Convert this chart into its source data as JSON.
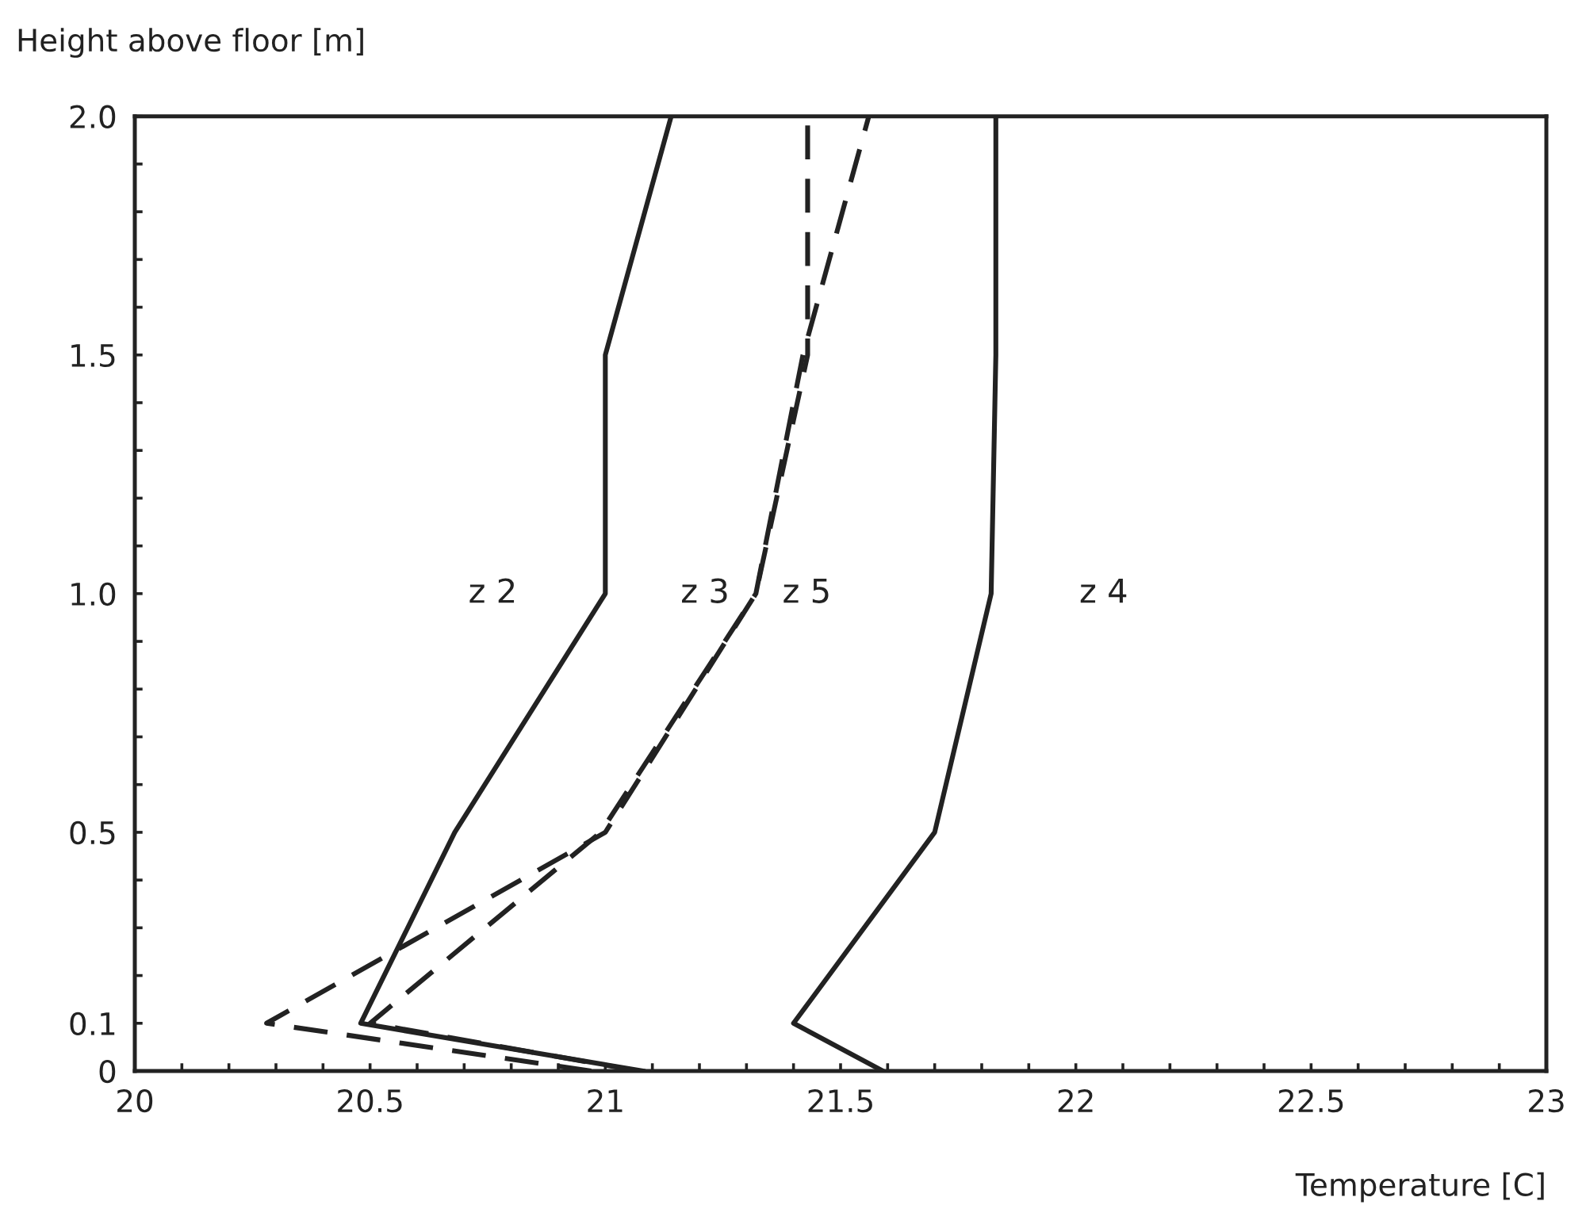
{
  "chart_data": {
    "type": "line",
    "xlabel": "Temperature [C]",
    "ylabel": "Height above floor [m]",
    "xlim": [
      20,
      23
    ],
    "ylim": [
      0,
      2.0
    ],
    "xticks": [
      {
        "value": 20,
        "label": "20"
      },
      {
        "value": 20.1,
        "label": null
      },
      {
        "value": 20.2,
        "label": null
      },
      {
        "value": 20.3,
        "label": null
      },
      {
        "value": 20.4,
        "label": null
      },
      {
        "value": 20.5,
        "label": "20.5"
      },
      {
        "value": 20.6,
        "label": null
      },
      {
        "value": 20.7,
        "label": null
      },
      {
        "value": 20.8,
        "label": null
      },
      {
        "value": 20.9,
        "label": null
      },
      {
        "value": 21,
        "label": "21"
      },
      {
        "value": 21.1,
        "label": null
      },
      {
        "value": 21.2,
        "label": null
      },
      {
        "value": 21.3,
        "label": null
      },
      {
        "value": 21.4,
        "label": null
      },
      {
        "value": 21.5,
        "label": "21.5"
      },
      {
        "value": 21.6,
        "label": null
      },
      {
        "value": 21.7,
        "label": null
      },
      {
        "value": 21.8,
        "label": null
      },
      {
        "value": 21.9,
        "label": null
      },
      {
        "value": 22,
        "label": "22"
      },
      {
        "value": 22.1,
        "label": null
      },
      {
        "value": 22.2,
        "label": null
      },
      {
        "value": 22.3,
        "label": null
      },
      {
        "value": 22.4,
        "label": null
      },
      {
        "value": 22.5,
        "label": "22.5"
      },
      {
        "value": 22.6,
        "label": null
      },
      {
        "value": 22.7,
        "label": null
      },
      {
        "value": 22.8,
        "label": null
      },
      {
        "value": 22.9,
        "label": null
      },
      {
        "value": 23,
        "label": "23"
      }
    ],
    "yticks": [
      {
        "value": 0,
        "label": "0"
      },
      {
        "value": 0.1,
        "label": "0.1"
      },
      {
        "value": 0.2,
        "label": null
      },
      {
        "value": 0.3,
        "label": null
      },
      {
        "value": 0.4,
        "label": null
      },
      {
        "value": 0.5,
        "label": "0.5"
      },
      {
        "value": 0.6,
        "label": null
      },
      {
        "value": 0.7,
        "label": null
      },
      {
        "value": 0.8,
        "label": null
      },
      {
        "value": 0.9,
        "label": null
      },
      {
        "value": 1.0,
        "label": "1.0"
      },
      {
        "value": 1.1,
        "label": null
      },
      {
        "value": 1.2,
        "label": null
      },
      {
        "value": 1.3,
        "label": null
      },
      {
        "value": 1.4,
        "label": null
      },
      {
        "value": 1.5,
        "label": "1.5"
      },
      {
        "value": 1.6,
        "label": null
      },
      {
        "value": 1.7,
        "label": null
      },
      {
        "value": 1.8,
        "label": null
      },
      {
        "value": 1.9,
        "label": null
      },
      {
        "value": 2.0,
        "label": "2.0"
      }
    ],
    "grid": false,
    "legend": false,
    "series": [
      {
        "name": "z 2",
        "color": "#222222",
        "line_style": "solid",
        "x": [
          21.08,
          20.48,
          20.68,
          21.0,
          21.0,
          21.14
        ],
        "values": [
          0,
          0.1,
          0.5,
          1.0,
          1.5,
          2.0
        ]
      },
      {
        "name": "z 3",
        "color": "#222222",
        "line_style": "dashed",
        "x": [
          21.07,
          20.5,
          20.99,
          21.32,
          21.42,
          21.56
        ],
        "values": [
          0,
          0.1,
          0.5,
          1.0,
          1.5,
          2.0
        ]
      },
      {
        "name": "z 5",
        "color": "#222222",
        "line_style": "dashed",
        "x": [
          20.97,
          20.28,
          21.0,
          21.32,
          21.43,
          21.43
        ],
        "values": [
          0,
          0.1,
          0.5,
          1.0,
          1.5,
          2.0
        ]
      },
      {
        "name": "z 4",
        "color": "#222222",
        "line_style": "solid",
        "x": [
          21.59,
          21.4,
          21.7,
          21.82,
          21.83,
          21.83
        ],
        "values": [
          0,
          0.1,
          0.5,
          1.0,
          1.5,
          2.0
        ]
      }
    ]
  }
}
